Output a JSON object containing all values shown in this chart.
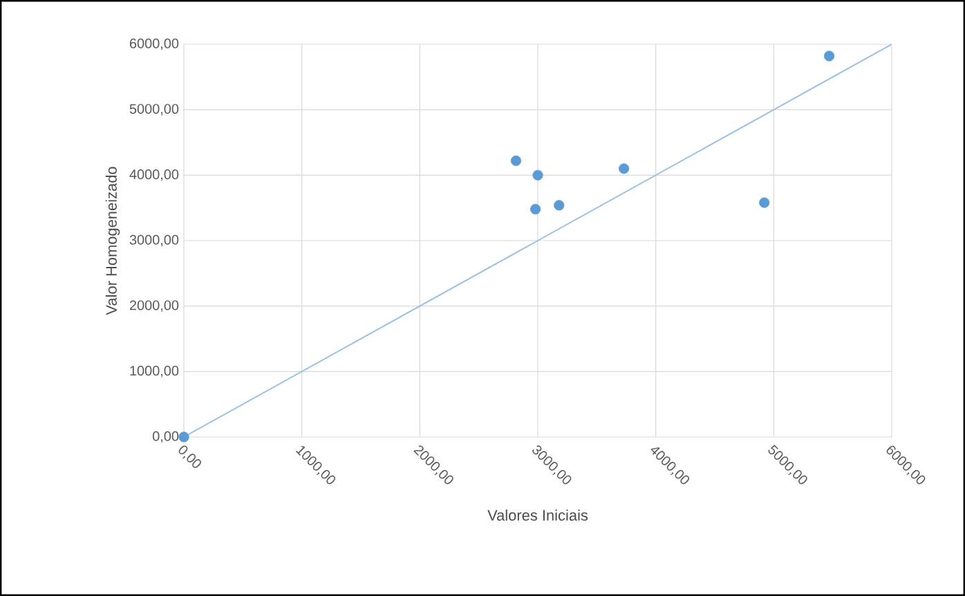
{
  "chart_data": {
    "type": "scatter",
    "xlabel": "Valores Iniciais",
    "ylabel": "Valor Homogeneizado",
    "series": [
      {
        "color": "#5b9bd5",
        "marker": "circle",
        "x": [
          0,
          2815,
          3000,
          2980,
          3180,
          3730,
          4920,
          5470
        ],
        "values": [
          0,
          4220,
          4000,
          3480,
          3540,
          4100,
          3580,
          5820
        ]
      },
      {
        "type": "line",
        "marker": "none",
        "color": "#9dc3e6",
        "x": [
          0,
          6000
        ],
        "values": [
          0,
          6000
        ]
      }
    ],
    "xlim": [
      0,
      6000
    ],
    "ylim": [
      0,
      6000
    ],
    "xticks": [
      {
        "value": 0,
        "label": "0,00"
      },
      {
        "value": 1000,
        "label": "1000,00"
      },
      {
        "value": 2000,
        "label": "2000,00"
      },
      {
        "value": 3000,
        "label": "3000,00"
      },
      {
        "value": 4000,
        "label": "4000,00"
      },
      {
        "value": 5000,
        "label": "5000,00"
      },
      {
        "value": 6000,
        "label": "6000,00"
      }
    ],
    "yticks": [
      {
        "value": 0,
        "label": "0,00"
      },
      {
        "value": 1000,
        "label": "1000,00"
      },
      {
        "value": 2000,
        "label": "2000,00"
      },
      {
        "value": 3000,
        "label": "3000,00"
      },
      {
        "value": 4000,
        "label": "4000,00"
      },
      {
        "value": 5000,
        "label": "5000,00"
      },
      {
        "value": 6000,
        "label": "6000,00"
      }
    ],
    "grid": true
  }
}
